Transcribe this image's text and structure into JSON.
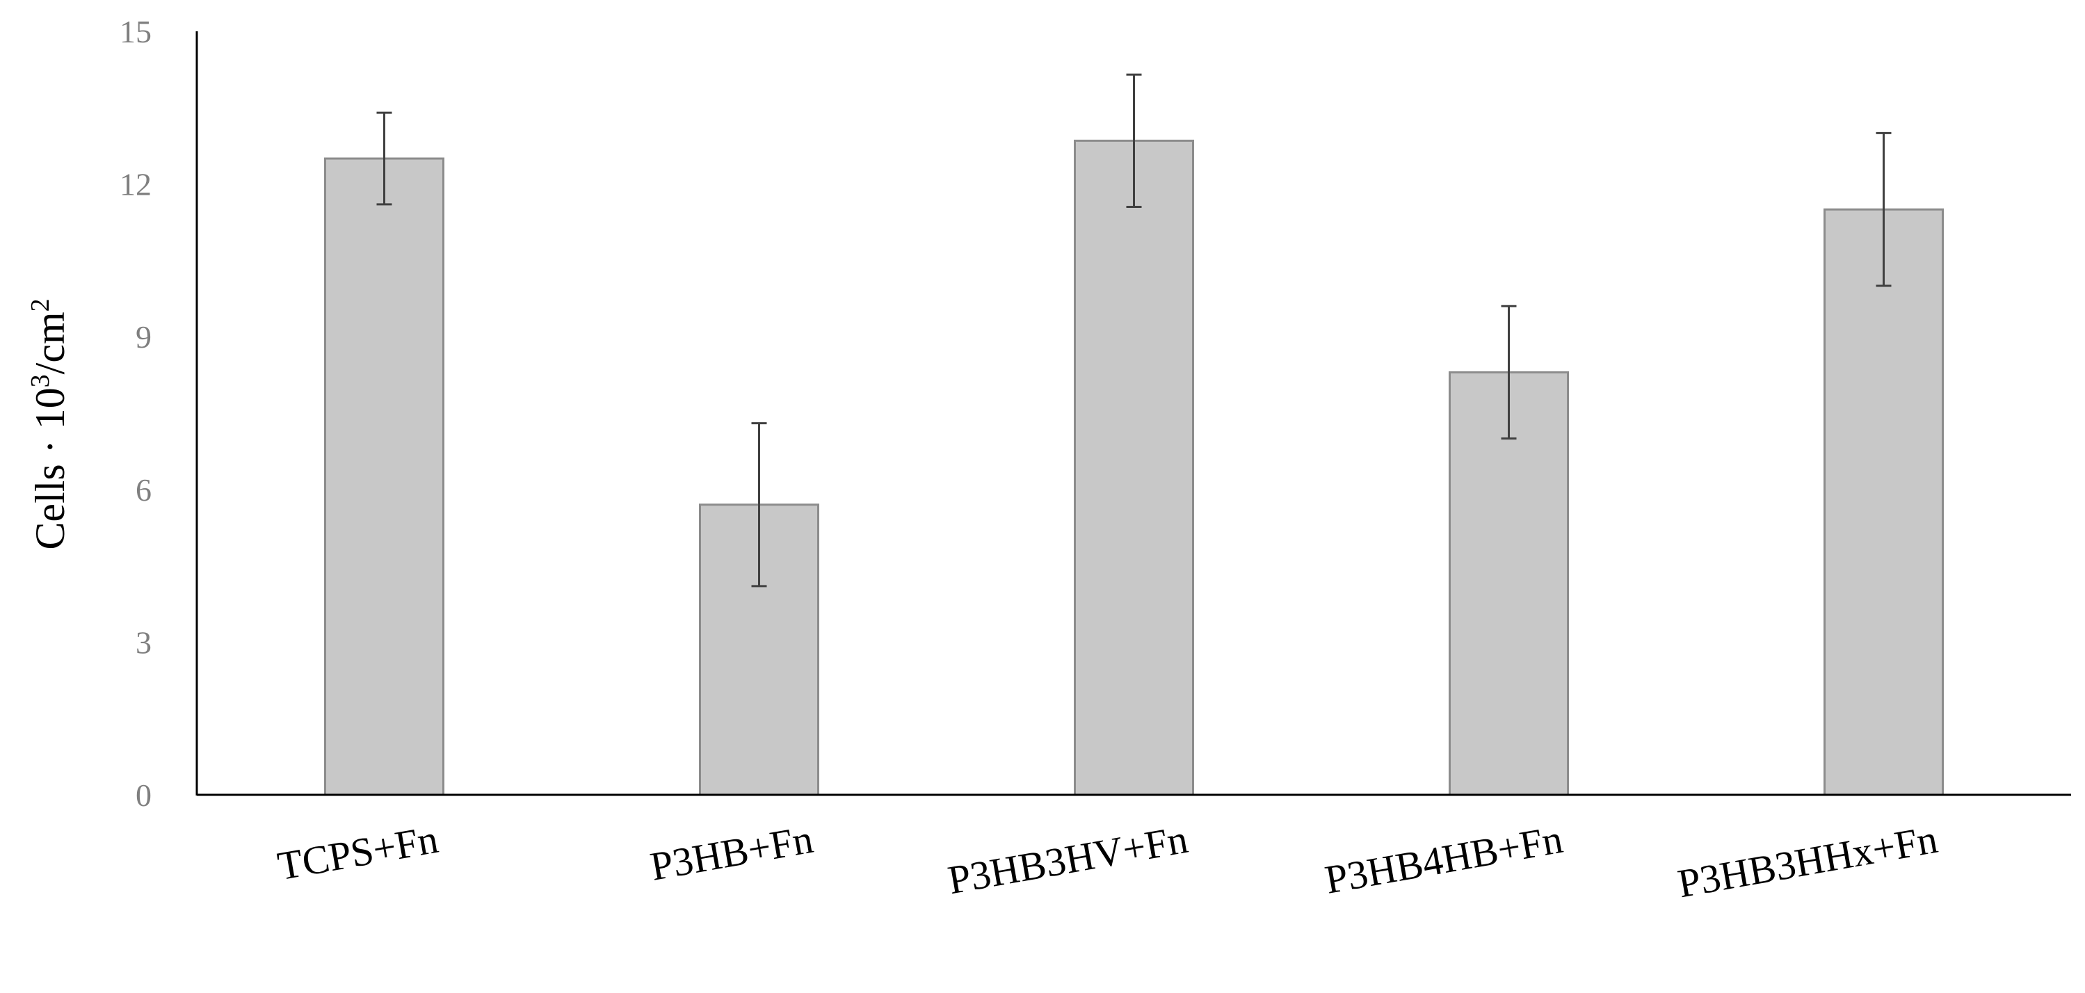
{
  "chart_data": {
    "type": "bar",
    "title": "",
    "xlabel": "",
    "ylabel": {
      "prefix": "Cells · 10",
      "exp1": "3",
      "mid": "/cm",
      "exp2": "2"
    },
    "categories": [
      "TCPS+Fn",
      "P3HB+Fn",
      "P3HB3HV+Fn",
      "P3HB4HB+Fn",
      "P3HB3HHx+Fn"
    ],
    "values": [
      12.5,
      5.7,
      12.85,
      8.3,
      11.5
    ],
    "errors": [
      0.9,
      1.6,
      1.3,
      1.3,
      1.5
    ],
    "ylim": [
      0,
      15
    ],
    "yticks": [
      "0",
      "3",
      "6",
      "9",
      "12",
      "15"
    ],
    "grid": false,
    "legend": "none",
    "colors": {
      "bar_fill": "#c8c8c8",
      "bar_stroke": "#8c8c8c",
      "error_bar": "#404040",
      "axis": "#000000",
      "tick_text": "#7f7f7f"
    }
  }
}
